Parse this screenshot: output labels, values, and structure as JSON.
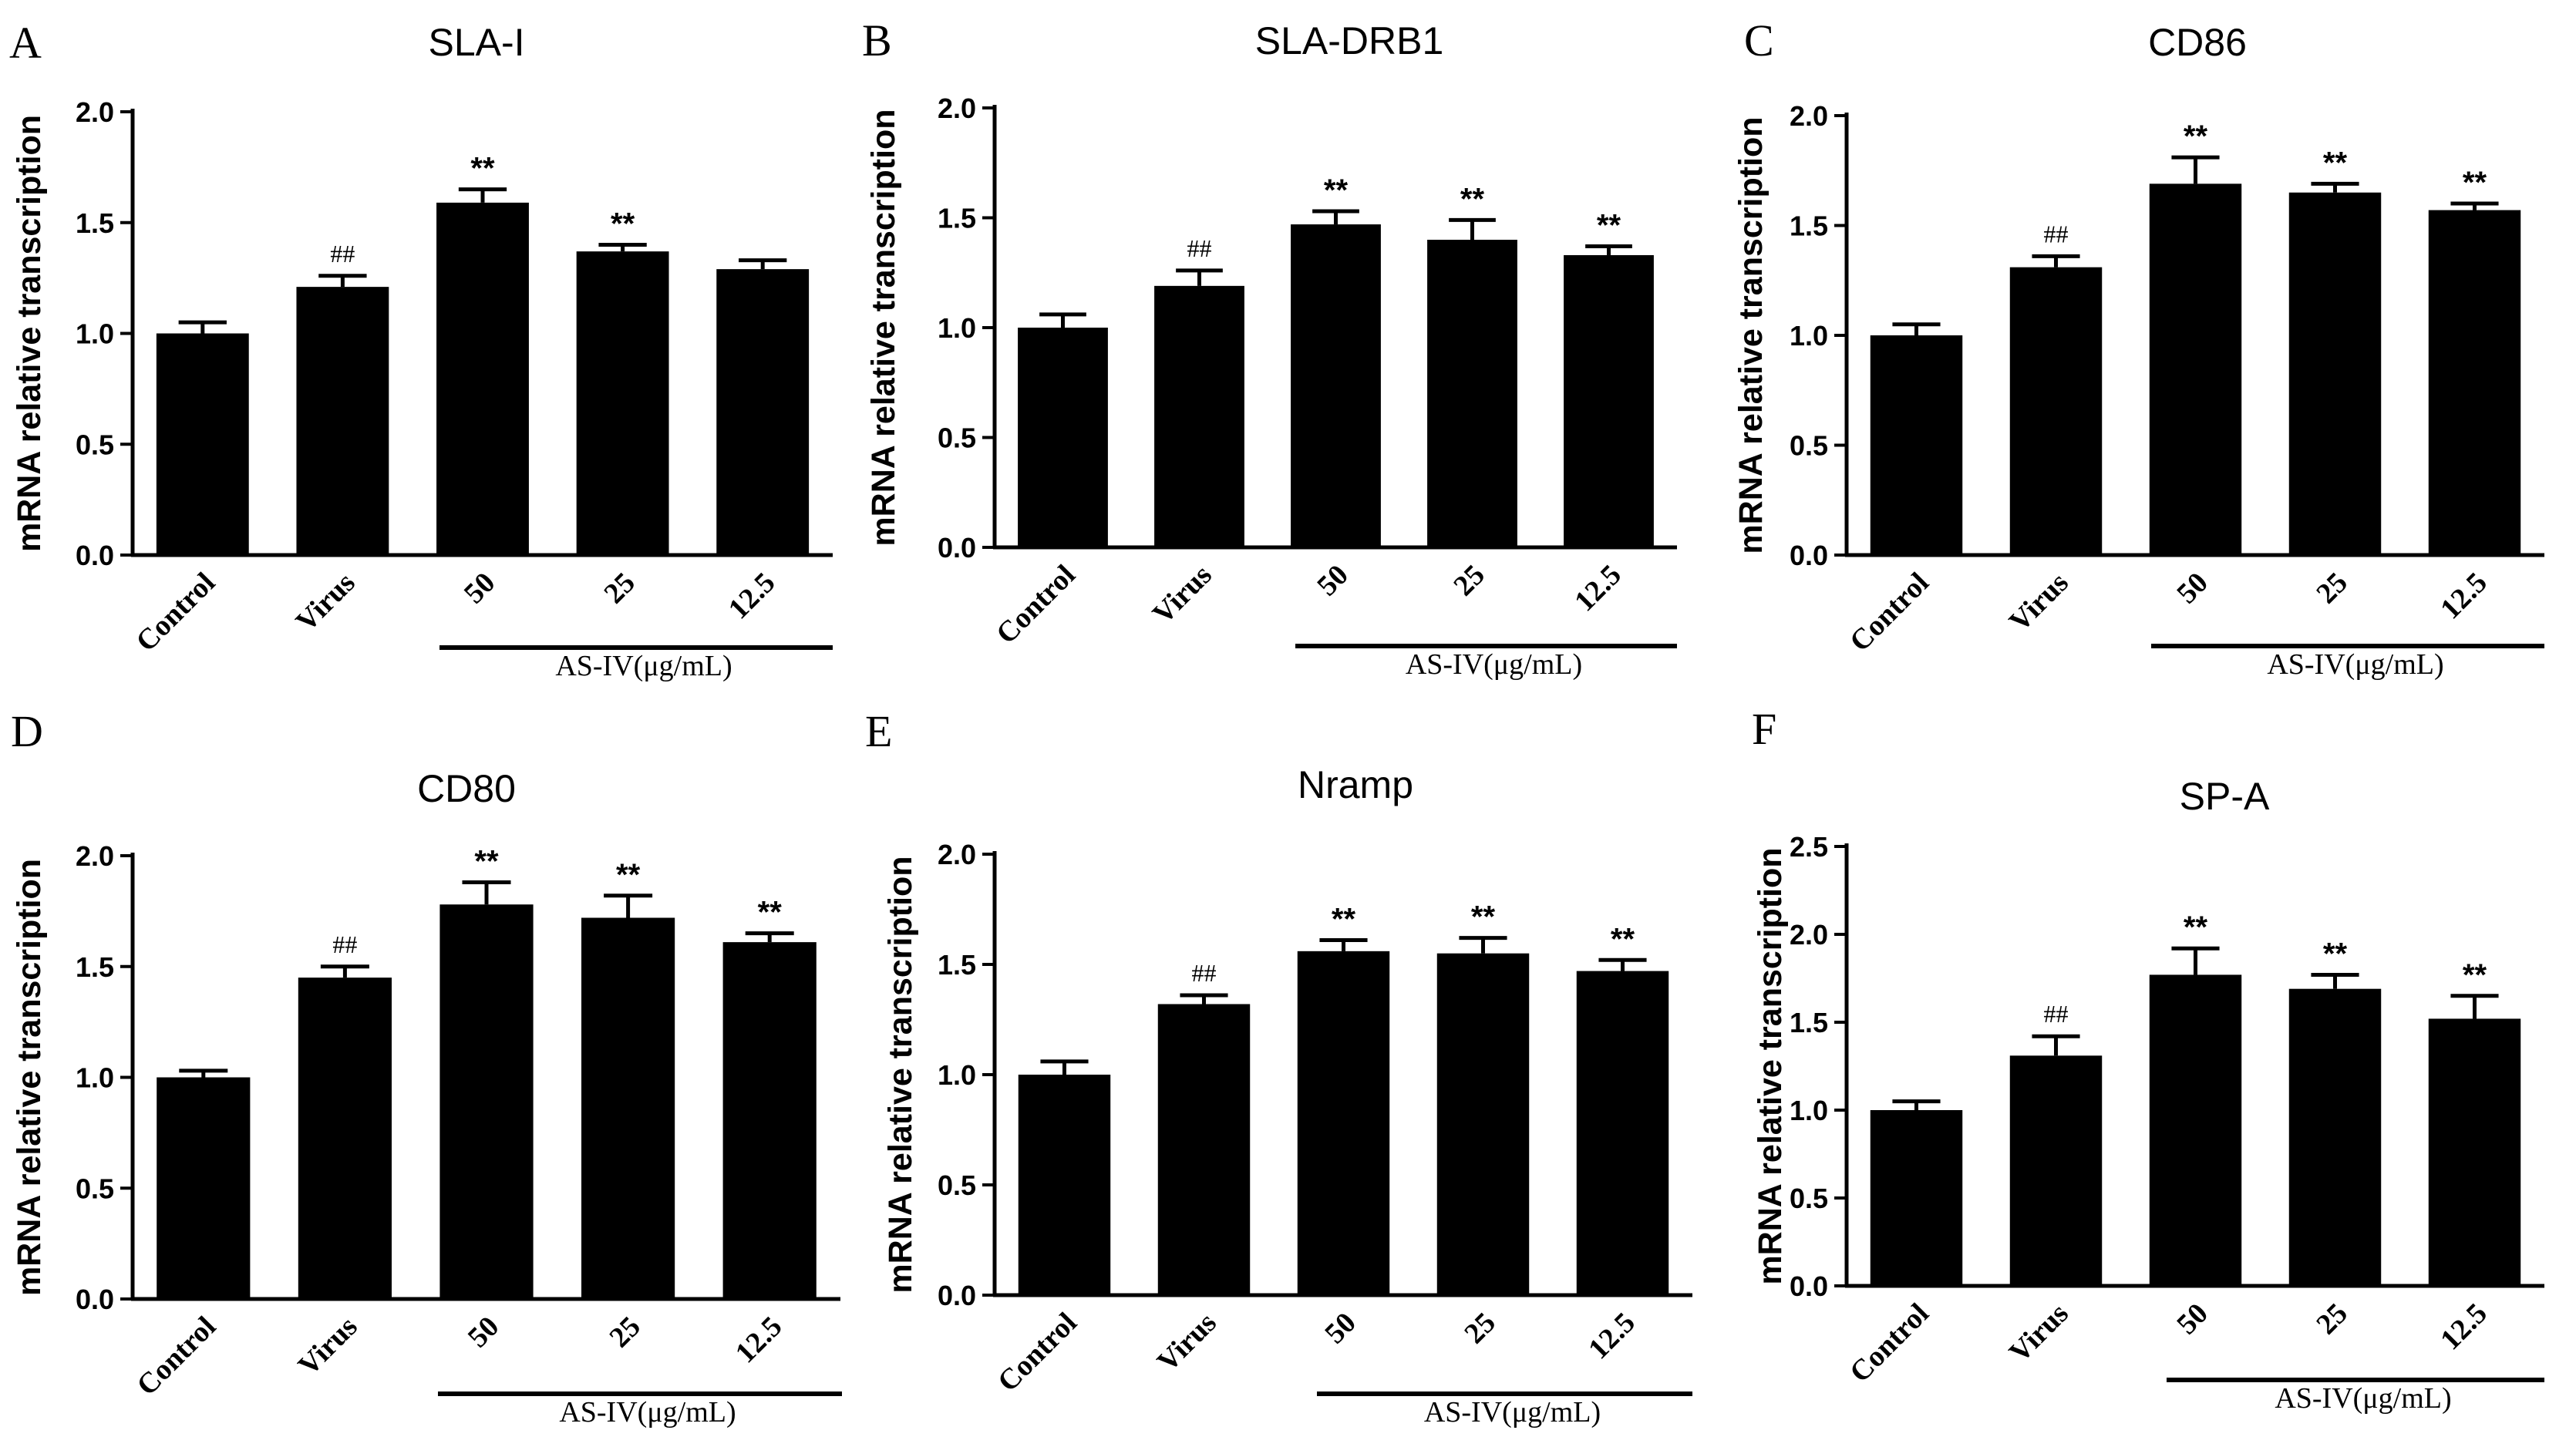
{
  "chart_data": [
    {
      "panel": "A",
      "type": "bar",
      "title": "SLA-I",
      "ylabel": "mRNA relative transcription",
      "xlabel": "",
      "categories": [
        "Control",
        "Virus",
        "50",
        "25",
        "12.5"
      ],
      "values": [
        1.0,
        1.21,
        1.59,
        1.37,
        1.29
      ],
      "errors": [
        0.05,
        0.05,
        0.06,
        0.03,
        0.04
      ],
      "annotations": [
        "",
        "##",
        "**",
        "**",
        ""
      ],
      "ylim": [
        0,
        2.0
      ],
      "yticks": [
        "0.0",
        "0.5",
        "1.0",
        "1.5",
        "2.0"
      ],
      "group_label": "AS-IV(μg/mL)",
      "grid": false,
      "color": "#000000"
    },
    {
      "panel": "B",
      "type": "bar",
      "title": "SLA-DRB1",
      "ylabel": "mRNA relative transcription",
      "xlabel": "",
      "categories": [
        "Control",
        "Virus",
        "50",
        "25",
        "12.5"
      ],
      "values": [
        1.0,
        1.19,
        1.47,
        1.4,
        1.33
      ],
      "errors": [
        0.06,
        0.07,
        0.06,
        0.09,
        0.04
      ],
      "annotations": [
        "",
        "##",
        "**",
        "**",
        "**"
      ],
      "ylim": [
        0,
        2.0
      ],
      "yticks": [
        "0.0",
        "0.5",
        "1.0",
        "1.5",
        "2.0"
      ],
      "group_label": "AS-IV(μg/mL)",
      "grid": false,
      "color": "#000000"
    },
    {
      "panel": "C",
      "type": "bar",
      "title": "CD86",
      "ylabel": "mRNA relative transcription",
      "xlabel": "",
      "categories": [
        "Control",
        "Virus",
        "50",
        "25",
        "12.5"
      ],
      "values": [
        1.0,
        1.31,
        1.69,
        1.65,
        1.57
      ],
      "errors": [
        0.05,
        0.05,
        0.12,
        0.04,
        0.03
      ],
      "annotations": [
        "",
        "##",
        "**",
        "**",
        "**"
      ],
      "ylim": [
        0,
        2.0
      ],
      "yticks": [
        "0.0",
        "0.5",
        "1.0",
        "1.5",
        "2.0"
      ],
      "group_label": "AS-IV(μg/mL)",
      "grid": false,
      "color": "#000000"
    },
    {
      "panel": "D",
      "type": "bar",
      "title": "CD80",
      "ylabel": "mRNA relative transcription",
      "xlabel": "",
      "categories": [
        "Control",
        "Virus",
        "50",
        "25",
        "12.5"
      ],
      "values": [
        1.0,
        1.45,
        1.78,
        1.72,
        1.61
      ],
      "errors": [
        0.03,
        0.05,
        0.1,
        0.1,
        0.04
      ],
      "annotations": [
        "",
        "##",
        "**",
        "**",
        "**"
      ],
      "ylim": [
        0,
        2.0
      ],
      "yticks": [
        "0.0",
        "0.5",
        "1.0",
        "1.5",
        "2.0"
      ],
      "group_label": "AS-IV(μg/mL)",
      "grid": false,
      "color": "#000000"
    },
    {
      "panel": "E",
      "type": "bar",
      "title": "Nramp",
      "ylabel": "mRNA relative transcription",
      "xlabel": "",
      "categories": [
        "Control",
        "Virus",
        "50",
        "25",
        "12.5"
      ],
      "values": [
        1.0,
        1.32,
        1.56,
        1.55,
        1.47
      ],
      "errors": [
        0.06,
        0.04,
        0.05,
        0.07,
        0.05
      ],
      "annotations": [
        "",
        "##",
        "**",
        "**",
        "**"
      ],
      "ylim": [
        0,
        2.0
      ],
      "yticks": [
        "0.0",
        "0.5",
        "1.0",
        "1.5",
        "2.0"
      ],
      "group_label": "AS-IV(μg/mL)",
      "grid": false,
      "color": "#000000"
    },
    {
      "panel": "F",
      "type": "bar",
      "title": "SP-A",
      "ylabel": "mRNA relative transcription",
      "xlabel": "",
      "categories": [
        "Control",
        "Virus",
        "50",
        "25",
        "12.5"
      ],
      "values": [
        1.0,
        1.31,
        1.77,
        1.69,
        1.52
      ],
      "errors": [
        0.05,
        0.11,
        0.15,
        0.08,
        0.13
      ],
      "annotations": [
        "",
        "##",
        "**",
        "**",
        "**"
      ],
      "ylim": [
        0,
        2.5
      ],
      "yticks": [
        "0.0",
        "0.5",
        "1.0",
        "1.5",
        "2.0",
        "2.5"
      ],
      "group_label": "AS-IV(μg/mL)",
      "grid": false,
      "color": "#000000"
    }
  ]
}
